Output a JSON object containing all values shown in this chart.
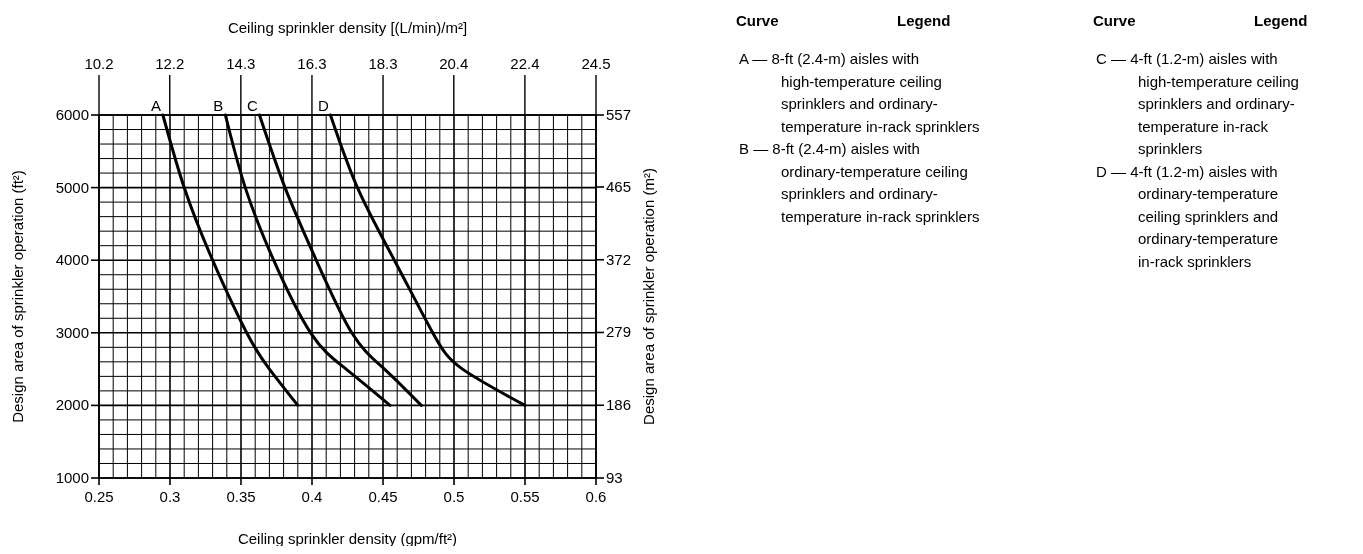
{
  "chart_data": {
    "type": "line",
    "xlabel": "Ceiling sprinkler density (gpm/ft²)",
    "ylabel": "Design area of sprinkler operation (ft²)",
    "x2label": "Ceiling sprinkler density [(L/min)/m²]",
    "y2label": "Design area of sprinkler operation (m²)",
    "xlim": [
      0.25,
      0.6
    ],
    "xticks": [
      0.25,
      {
        "value": 0.26,
        "label": null
      },
      {
        "value": 0.27,
        "label": null
      },
      {
        "value": 0.28,
        "label": null
      },
      {
        "value": 0.29,
        "label": null
      },
      0.3,
      {
        "value": 0.31,
        "label": null
      },
      {
        "value": 0.32,
        "label": null
      },
      {
        "value": 0.33,
        "label": null
      },
      {
        "value": 0.34,
        "label": null
      },
      0.35,
      {
        "value": 0.36,
        "label": null
      },
      {
        "value": 0.37,
        "label": null
      },
      {
        "value": 0.38,
        "label": null
      },
      {
        "value": 0.39,
        "label": null
      },
      0.4,
      {
        "value": 0.41,
        "label": null
      },
      {
        "value": 0.42,
        "label": null
      },
      {
        "value": 0.43,
        "label": null
      },
      {
        "value": 0.44,
        "label": null
      },
      0.45,
      {
        "value": 0.46,
        "label": null
      },
      {
        "value": 0.47,
        "label": null
      },
      {
        "value": 0.48,
        "label": null
      },
      {
        "value": 0.49,
        "label": null
      },
      0.5,
      {
        "value": 0.51,
        "label": null
      },
      {
        "value": 0.52,
        "label": null
      },
      {
        "value": 0.53,
        "label": null
      },
      {
        "value": 0.54,
        "label": null
      },
      0.55,
      {
        "value": 0.56,
        "label": null
      },
      {
        "value": 0.57,
        "label": null
      },
      {
        "value": 0.58,
        "label": null
      },
      {
        "value": 0.59,
        "label": null
      },
      0.6
    ],
    "ylim": [
      1000,
      6000
    ],
    "yticks": [
      1000,
      {
        "value": 1200,
        "label": null
      },
      {
        "value": 1400,
        "label": null
      },
      {
        "value": 1600,
        "label": null
      },
      {
        "value": 1800,
        "label": null
      },
      2000,
      {
        "value": 2200,
        "label": null
      },
      {
        "value": 2400,
        "label": null
      },
      {
        "value": 2600,
        "label": null
      },
      {
        "value": 2800,
        "label": null
      },
      3000,
      {
        "value": 3200,
        "label": null
      },
      {
        "value": 3400,
        "label": null
      },
      {
        "value": 3600,
        "label": null
      },
      {
        "value": 3800,
        "label": null
      },
      4000,
      {
        "value": 4200,
        "label": null
      },
      {
        "value": 4400,
        "label": null
      },
      {
        "value": 4600,
        "label": null
      },
      {
        "value": 4800,
        "label": null
      },
      5000,
      {
        "value": 5200,
        "label": null
      },
      {
        "value": 5400,
        "label": null
      },
      {
        "value": 5600,
        "label": null
      },
      {
        "value": 5800,
        "label": null
      },
      6000
    ],
    "x2lim": [
      10.19,
      24.45
    ],
    "x2ticks": [
      {
        "value": 10.19,
        "label": "10.2"
      },
      {
        "value": 12.22,
        "label": "12.2"
      },
      {
        "value": 14.26,
        "label": "14.3"
      },
      {
        "value": 16.3,
        "label": "16.3"
      },
      {
        "value": 18.34,
        "label": "18.3"
      },
      {
        "value": 20.37,
        "label": "20.4"
      },
      {
        "value": 22.41,
        "label": "22.4"
      },
      {
        "value": 24.45,
        "label": "24.5"
      }
    ],
    "y2lim": [
      93,
      557
    ],
    "y2ticks": [
      93,
      186,
      279,
      372,
      465,
      557
    ],
    "grid": true,
    "series": [
      {
        "name": "A",
        "color": "#000000",
        "x": [
          0.295,
          0.31,
          0.33,
          0.354,
          0.37,
          0.39
        ],
        "values": [
          6000,
          5000,
          4000,
          3000,
          2500,
          2000
        ]
      },
      {
        "name": "B",
        "color": "#000000",
        "x": [
          0.339,
          0.353,
          0.373,
          0.399,
          0.424,
          0.455
        ],
        "values": [
          6000,
          5000,
          4000,
          3000,
          2500,
          2000
        ]
      },
      {
        "name": "C",
        "color": "#000000",
        "x": [
          0.363,
          0.381,
          0.403,
          0.428,
          0.451,
          0.477
        ],
        "values": [
          6000,
          5000,
          4000,
          3000,
          2500,
          2000
        ]
      },
      {
        "name": "D",
        "color": "#000000",
        "x": [
          0.413,
          0.432,
          0.458,
          0.485,
          0.506,
          0.55
        ],
        "values": [
          6000,
          5000,
          4000,
          3000,
          2500,
          2000
        ]
      }
    ],
    "annotations": [
      "Curve",
      "Legend",
      "Curve",
      "Legend",
      "A — 8-ft (2.4-m) aisles with\nhigh-temperature ceiling\nsprinklers and ordinary-\ntemperature in-rack sprinklers",
      "B — 8-ft (2.4-m) aisles with\nordinary-temperature ceiling\nsprinklers and ordinary-\ntemperature in-rack sprinklers",
      "C — 4-ft (1.2-m) aisles with\nhigh-temperature ceiling\nsprinklers and ordinary-\ntemperature in-rack\nsprinklers",
      "D — 4-ft (1.2-m) aisles with\nordinary-temperature\nceiling sprinklers and\nordinary-temperature\nin-rack sprinklers"
    ]
  }
}
